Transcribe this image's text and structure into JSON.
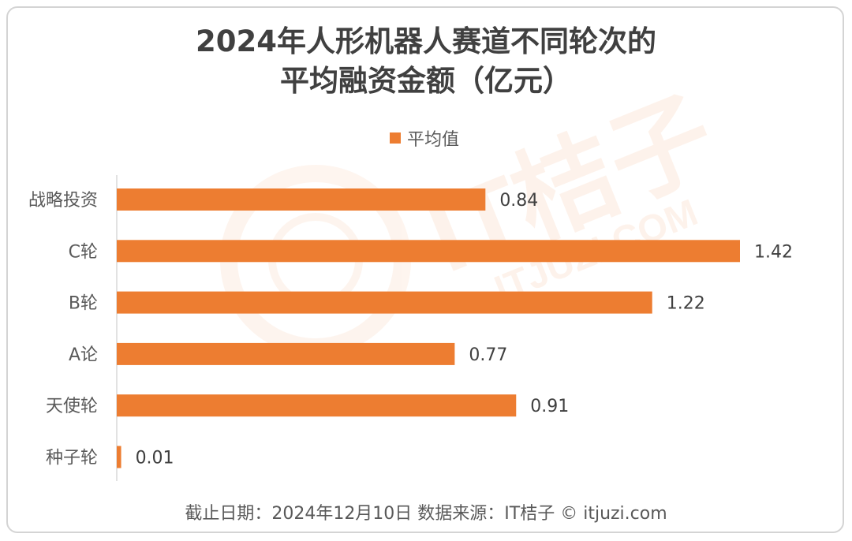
{
  "chart_data": {
    "type": "bar",
    "orientation": "horizontal",
    "title_line1": "2024年人形机器人赛道不同轮次的",
    "title_line2": "平均融资金额（亿元）",
    "legend": [
      "平均值"
    ],
    "categories": [
      "战略投资",
      "C轮",
      "B轮",
      "A论",
      "天使轮",
      "种子轮"
    ],
    "series": [
      {
        "name": "平均值",
        "values": [
          0.84,
          1.42,
          1.22,
          0.77,
          0.91,
          0.01
        ]
      }
    ],
    "value_labels": [
      "0.84",
      "1.42",
      "1.22",
      "0.77",
      "0.91",
      "0.01"
    ],
    "xlim": [
      0,
      1.42
    ],
    "grid": false,
    "bar_color": "#ED7D31"
  },
  "footer": "截止日期：2024年12月10日    数据来源：IT桔子 © itjuzi.com",
  "watermark": {
    "main": "IT桔子",
    "sub": "ITJUZI.COM"
  },
  "colors": {
    "bar": "#ED7D31",
    "text": "#595959",
    "title": "#404040",
    "axis": "#d9d9d9"
  }
}
